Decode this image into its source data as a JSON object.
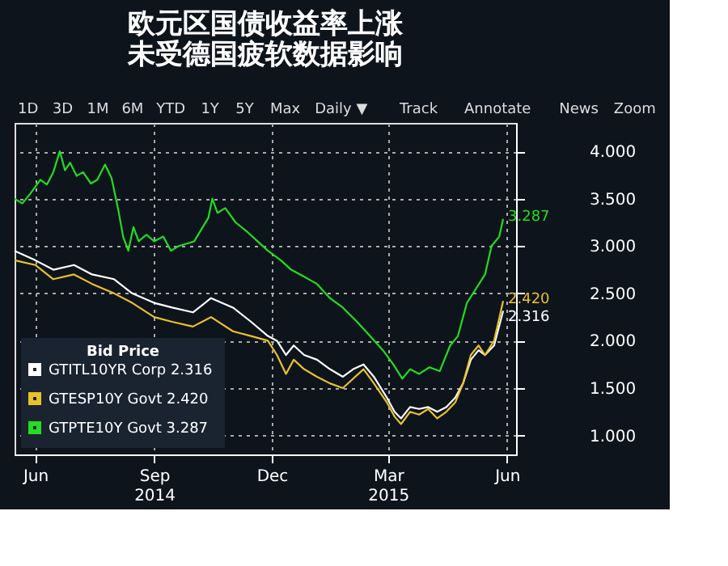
{
  "chart_data": {
    "type": "line",
    "title": [
      "欧元区国债收益率上涨",
      "未受德国疲软数据影响"
    ],
    "legend_title": "Bid Price",
    "legend": "bottom left",
    "grid": true,
    "line_style": "solid",
    "marker": "none",
    "xlim": [
      "2014-05-16",
      "2015-06-08"
    ],
    "xticks": [
      {
        "value": "2014-06-01",
        "label": "Jun"
      },
      {
        "value": "2014-09-01",
        "label": "Sep\n2014"
      },
      {
        "value": "2014-12-01",
        "label": "Dec"
      },
      {
        "value": "2015-03-01",
        "label": "Mar\n2015"
      },
      {
        "value": "2015-06-01",
        "label": "Jun"
      }
    ],
    "ylim": [
      0.8,
      4.3
    ],
    "yticks": [
      {
        "value": 1,
        "label": "1.000"
      },
      {
        "value": 1.5,
        "label": "1.500"
      },
      {
        "value": 2,
        "label": "2.000"
      },
      {
        "value": 2.5,
        "label": "2.500"
      },
      {
        "value": 3,
        "label": "3.000"
      },
      {
        "value": 3.5,
        "label": "3.500"
      },
      {
        "value": 4,
        "label": "4.000"
      }
    ],
    "annotations": [
      "1D",
      "3D",
      "1M",
      "6M",
      "YTD",
      "1Y",
      "5Y",
      "Max",
      "Daily ▼",
      "Track",
      "Annotate",
      "News",
      "Zoom",
      {
        "text": "3.287",
        "x": "2015-05-29",
        "y": 3.287
      },
      {
        "text": "2.420",
        "x": "2015-05-29",
        "y": 2.42
      },
      {
        "text": "2.316",
        "x": "2015-05-29",
        "y": 2.316
      }
    ],
    "series": [
      {
        "name": "GTITL10YR Corp  2.316",
        "color": "#ffffff",
        "x": [
          "2014-05-16",
          "2014-06-01",
          "2014-06-15",
          "2014-07-01",
          "2014-07-15",
          "2014-08-01",
          "2014-08-15",
          "2014-09-01",
          "2014-09-15",
          "2014-10-01",
          "2014-10-15",
          "2014-11-01",
          "2014-11-15",
          "2014-11-28",
          "2014-12-05",
          "2014-12-12",
          "2014-12-18",
          "2014-12-26",
          "2015-01-05",
          "2015-01-15",
          "2015-01-25",
          "2015-02-02",
          "2015-02-10",
          "2015-02-18",
          "2015-02-28",
          "2015-03-06",
          "2015-03-11",
          "2015-03-18",
          "2015-03-25",
          "2015-04-01",
          "2015-04-08",
          "2015-04-15",
          "2015-04-22",
          "2015-04-28",
          "2015-05-04",
          "2015-05-10",
          "2015-05-15",
          "2015-05-22",
          "2015-05-29"
        ],
        "values": [
          2.95,
          2.85,
          2.75,
          2.8,
          2.7,
          2.65,
          2.5,
          2.4,
          2.35,
          2.3,
          2.45,
          2.35,
          2.2,
          2.05,
          2.0,
          1.85,
          1.95,
          1.85,
          1.8,
          1.7,
          1.62,
          1.7,
          1.75,
          1.62,
          1.4,
          1.25,
          1.18,
          1.3,
          1.28,
          1.3,
          1.25,
          1.3,
          1.4,
          1.55,
          1.8,
          1.9,
          1.85,
          1.95,
          2.316
        ]
      },
      {
        "name": "GTESP10Y Govt  2.420",
        "color": "#e8c22a",
        "x": [
          "2014-05-16",
          "2014-06-01",
          "2014-06-15",
          "2014-07-01",
          "2014-07-15",
          "2014-08-01",
          "2014-08-15",
          "2014-09-01",
          "2014-09-15",
          "2014-10-01",
          "2014-10-15",
          "2014-11-01",
          "2014-11-15",
          "2014-11-28",
          "2014-12-05",
          "2014-12-12",
          "2014-12-18",
          "2014-12-26",
          "2015-01-05",
          "2015-01-15",
          "2015-01-25",
          "2015-02-02",
          "2015-02-10",
          "2015-02-18",
          "2015-02-28",
          "2015-03-06",
          "2015-03-11",
          "2015-03-18",
          "2015-03-25",
          "2015-04-01",
          "2015-04-08",
          "2015-04-15",
          "2015-04-22",
          "2015-04-28",
          "2015-05-04",
          "2015-05-10",
          "2015-05-15",
          "2015-05-22",
          "2015-05-29"
        ],
        "values": [
          2.85,
          2.8,
          2.65,
          2.7,
          2.6,
          2.5,
          2.4,
          2.25,
          2.2,
          2.15,
          2.25,
          2.1,
          2.05,
          2.0,
          1.85,
          1.65,
          1.8,
          1.7,
          1.62,
          1.55,
          1.5,
          1.6,
          1.7,
          1.55,
          1.35,
          1.2,
          1.12,
          1.25,
          1.22,
          1.28,
          1.18,
          1.25,
          1.35,
          1.55,
          1.85,
          1.95,
          1.85,
          2.0,
          2.42
        ]
      },
      {
        "name": "GTPTE10Y Govt  3.287",
        "color": "#22dd22",
        "x": [
          "2014-05-16",
          "2014-05-22",
          "2014-05-28",
          "2014-06-05",
          "2014-06-10",
          "2014-06-15",
          "2014-06-20",
          "2014-06-24",
          "2014-06-28",
          "2014-07-03",
          "2014-07-08",
          "2014-07-14",
          "2014-07-19",
          "2014-07-25",
          "2014-07-30",
          "2014-08-04",
          "2014-08-08",
          "2014-08-12",
          "2014-08-16",
          "2014-08-20",
          "2014-08-26",
          "2014-09-01",
          "2014-09-08",
          "2014-09-14",
          "2014-09-20",
          "2014-10-02",
          "2014-10-13",
          "2014-10-16",
          "2014-10-20",
          "2014-10-26",
          "2014-11-03",
          "2014-11-12",
          "2014-11-20",
          "2014-11-28",
          "2014-12-08",
          "2014-12-16",
          "2014-12-23",
          "2015-01-05",
          "2015-01-15",
          "2015-01-25",
          "2015-02-05",
          "2015-02-15",
          "2015-02-25",
          "2015-03-05",
          "2015-03-12",
          "2015-03-18",
          "2015-03-25",
          "2015-04-02",
          "2015-04-10",
          "2015-04-18",
          "2015-04-24",
          "2015-05-01",
          "2015-05-08",
          "2015-05-15",
          "2015-05-20",
          "2015-05-26",
          "2015-05-29"
        ],
        "values": [
          3.5,
          3.45,
          3.55,
          3.7,
          3.65,
          3.78,
          4.0,
          3.8,
          3.88,
          3.74,
          3.78,
          3.66,
          3.7,
          3.86,
          3.72,
          3.4,
          3.1,
          2.95,
          3.2,
          3.05,
          3.12,
          3.05,
          3.1,
          2.95,
          3.0,
          3.05,
          3.3,
          3.5,
          3.35,
          3.4,
          3.25,
          3.15,
          3.05,
          2.95,
          2.85,
          2.75,
          2.7,
          2.6,
          2.45,
          2.35,
          2.2,
          2.05,
          1.9,
          1.75,
          1.6,
          1.7,
          1.65,
          1.72,
          1.68,
          1.95,
          2.05,
          2.4,
          2.55,
          2.7,
          3.0,
          3.1,
          3.287
        ]
      }
    ]
  }
}
